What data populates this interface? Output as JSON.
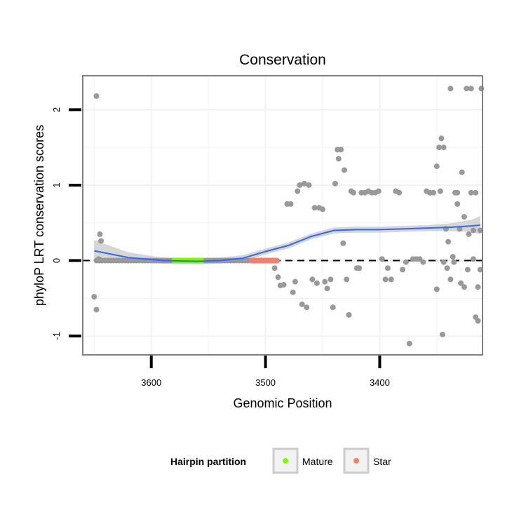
{
  "chart_data": {
    "type": "scatter",
    "title": "Conservation",
    "xlabel": "Genomic Position",
    "ylabel": "phyloP LRT conservation scores",
    "xlim": [
      3660,
      3310
    ],
    "ylim": [
      -1.25,
      2.45
    ],
    "x_reversed": true,
    "x_ticks": [
      3600,
      3500,
      3400
    ],
    "x_tick_labels": [
      "3600",
      "3500",
      "3400"
    ],
    "y_ticks": [
      -1,
      0,
      1,
      2
    ],
    "y_tick_labels": [
      "-1",
      "0",
      "1",
      "2"
    ],
    "grid": true,
    "reference_line": {
      "y": 0,
      "style": "dashed"
    },
    "legend": {
      "title": "Hairpin partition",
      "position": "bottom",
      "entries": [
        {
          "label": "Mature",
          "color": "#7cfc00"
        },
        {
          "label": "Star",
          "color": "#f08070"
        }
      ]
    },
    "colors": {
      "points": "#999999",
      "mature": "#7cfc00",
      "star": "#f08070",
      "smooth": "#3366ff",
      "ribbon": "#cccccc",
      "panel_border": "#808080",
      "grid": "#f2f2f2"
    },
    "series": [
      {
        "name": "scores",
        "points": [
          [
            3648,
            2.18
          ],
          [
            3645,
            0.35
          ],
          [
            3644,
            0.26
          ],
          [
            3646,
            0.02
          ],
          [
            3650,
            -0.48
          ],
          [
            3648,
            -0.65
          ],
          [
            3590,
            0.0
          ],
          [
            3510,
            0.0
          ],
          [
            3494,
            0.0
          ],
          [
            3492,
            -0.1
          ],
          [
            3489,
            -0.22
          ],
          [
            3487,
            -0.33
          ],
          [
            3484,
            -0.32
          ],
          [
            3481,
            0.75
          ],
          [
            3478,
            0.75
          ],
          [
            3476,
            -0.42
          ],
          [
            3474,
            -0.28
          ],
          [
            3472,
            0.92
          ],
          [
            3470,
            1.0
          ],
          [
            3468,
            -0.58
          ],
          [
            3466,
            1.02
          ],
          [
            3464,
            -0.62
          ],
          [
            3462,
            1.0
          ],
          [
            3459,
            -0.25
          ],
          [
            3457,
            0.7
          ],
          [
            3455,
            -0.3
          ],
          [
            3453,
            0.7
          ],
          [
            3450,
            0.68
          ],
          [
            3448,
            -0.28
          ],
          [
            3446,
            -0.37
          ],
          [
            3443,
            -0.25
          ],
          [
            3441,
            -0.62
          ],
          [
            3439,
            1.02
          ],
          [
            3437,
            1.47
          ],
          [
            3436,
            1.35
          ],
          [
            3434,
            1.47
          ],
          [
            3432,
            0.23
          ],
          [
            3431,
            1.2
          ],
          [
            3429,
            -0.25
          ],
          [
            3427,
            -0.72
          ],
          [
            3425,
            0.92
          ],
          [
            3423,
            0.9
          ],
          [
            3420,
            -0.1
          ],
          [
            3418,
            -0.1
          ],
          [
            3416,
            0.9
          ],
          [
            3413,
            0.9
          ],
          [
            3410,
            0.92
          ],
          [
            3407,
            0.9
          ],
          [
            3404,
            0.9
          ],
          [
            3401,
            0.92
          ],
          [
            3398,
            0.02
          ],
          [
            3395,
            -0.25
          ],
          [
            3393,
            -0.1
          ],
          [
            3390,
            -0.25
          ],
          [
            3386,
            0.92
          ],
          [
            3383,
            0.9
          ],
          [
            3380,
            -0.12
          ],
          [
            3377,
            -0.02
          ],
          [
            3374,
            -1.1
          ],
          [
            3371,
            0.02
          ],
          [
            3368,
            0.02
          ],
          [
            3365,
            0.02
          ],
          [
            3362,
            -0.02
          ],
          [
            3359,
            0.92
          ],
          [
            3356,
            0.9
          ],
          [
            3353,
            0.9
          ],
          [
            3350,
            -0.38
          ],
          [
            3347,
            0.92
          ],
          [
            3344,
            -0.02
          ],
          [
            3341,
            -0.1
          ],
          [
            3338,
            -0.25
          ],
          [
            3335,
            -0.02
          ],
          [
            3332,
            0.9
          ],
          [
            3329,
            -0.3
          ],
          [
            3326,
            -0.35
          ],
          [
            3323,
            -0.12
          ],
          [
            3320,
            0.9
          ],
          [
            3318,
            0.02
          ],
          [
            3316,
            0.9
          ],
          [
            3314,
            -0.35
          ],
          [
            3312,
            -0.12
          ],
          [
            3350,
            1.25
          ],
          [
            3348,
            1.5
          ],
          [
            3346,
            1.62
          ],
          [
            3344,
            1.5
          ],
          [
            3345,
            -0.98
          ],
          [
            3342,
            0.42
          ],
          [
            3340,
            0.25
          ],
          [
            3338,
            2.28
          ],
          [
            3336,
            0.05
          ],
          [
            3334,
            0.9
          ],
          [
            3332,
            0.75
          ],
          [
            3330,
            0.42
          ],
          [
            3328,
            1.17
          ],
          [
            3326,
            0.58
          ],
          [
            3324,
            2.28
          ],
          [
            3322,
            0.35
          ],
          [
            3320,
            2.28
          ],
          [
            3318,
            0.4
          ],
          [
            3316,
            -0.75
          ],
          [
            3314,
            -0.8
          ],
          [
            3312,
            0.4
          ],
          [
            3311,
            2.28
          ]
        ]
      },
      {
        "name": "Mature",
        "x_range": [
          3580,
          3555
        ],
        "y": 0.0
      },
      {
        "name": "Star",
        "x_range": [
          3512,
          3490
        ],
        "y": 0.0
      },
      {
        "name": "smooth",
        "points": [
          [
            3650,
            0.13
          ],
          [
            3620,
            0.04
          ],
          [
            3590,
            0.0
          ],
          [
            3560,
            -0.01
          ],
          [
            3540,
            0.0
          ],
          [
            3520,
            0.03
          ],
          [
            3500,
            0.12
          ],
          [
            3480,
            0.2
          ],
          [
            3460,
            0.32
          ],
          [
            3440,
            0.4
          ],
          [
            3420,
            0.41
          ],
          [
            3400,
            0.41
          ],
          [
            3380,
            0.42
          ],
          [
            3360,
            0.43
          ],
          [
            3340,
            0.44
          ],
          [
            3320,
            0.46
          ],
          [
            3312,
            0.47
          ]
        ],
        "ribbon_halfwidth": [
          0.14,
          0.07,
          0.04,
          0.04,
          0.04,
          0.04,
          0.04,
          0.04,
          0.04,
          0.04,
          0.04,
          0.04,
          0.04,
          0.04,
          0.05,
          0.08,
          0.12
        ]
      }
    ]
  }
}
